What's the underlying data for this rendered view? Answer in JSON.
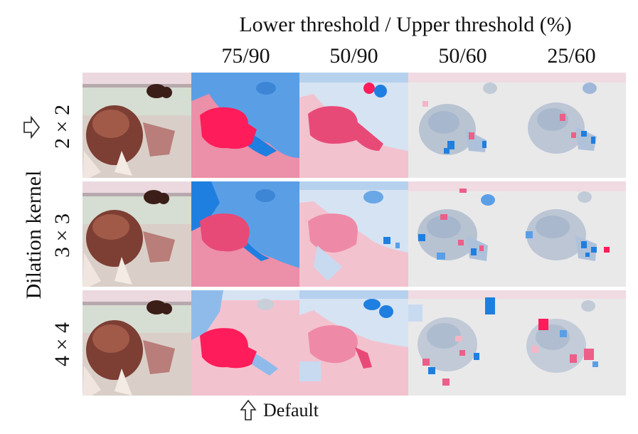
{
  "header": {
    "title": "Lower threshold / Upper threshold (%)",
    "columns": [
      "75/90",
      "50/90",
      "50/60",
      "25/60"
    ]
  },
  "axis": {
    "label": "Dilation kernel"
  },
  "rows": [
    {
      "kernel": "2 × 2"
    },
    {
      "kernel": "3 × 3"
    },
    {
      "kernel": "4 × 4"
    }
  ],
  "annotation": {
    "default_label": "Default"
  },
  "colors": {
    "strong_pink": "#ff1c5a",
    "pink": "#ec5f88",
    "light_pink": "#f3b6c8",
    "strong_blue": "#1f7fe0",
    "blue": "#5a9fe6",
    "light_blue": "#c8daf0",
    "gray": "#e9e9ea"
  }
}
